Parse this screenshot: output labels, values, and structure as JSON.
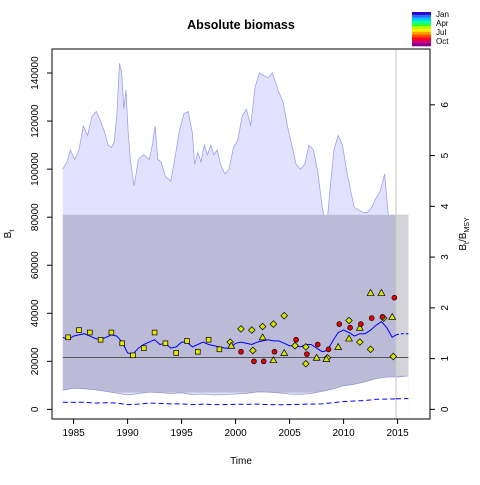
{
  "chart_data": {
    "type": "line",
    "title": "Absolute biomass",
    "xlabel": "Time",
    "ylabel": "B",
    "ylabel_sub": "t",
    "y2label": "B",
    "y2label_sub": "t",
    "y2label_sep": "/B",
    "y2label_sub2": "MSY",
    "xlim": [
      1983,
      2018
    ],
    "ylim": [
      -4000,
      150000
    ],
    "y2lim": [
      -0.19,
      7.1
    ],
    "bmsy": 21600,
    "x_ticks": [
      "1985",
      "1990",
      "1995",
      "2000",
      "2005",
      "2010",
      "2015"
    ],
    "x_tick_values": [
      1985,
      1990,
      1995,
      2000,
      2005,
      2010,
      2015
    ],
    "y_ticks": [
      "0",
      "20000",
      "40000",
      "60000",
      "80000",
      "100000",
      "120000",
      "140000"
    ],
    "y_tick_values": [
      0,
      20000,
      40000,
      60000,
      80000,
      100000,
      120000,
      140000
    ],
    "y2_ticks": [
      "0",
      "1",
      "2",
      "3",
      "4",
      "5",
      "6"
    ],
    "y2_tick_values": [
      0,
      1,
      2,
      3,
      4,
      5,
      6
    ],
    "prediction_start": 2014.85,
    "legend": {
      "labels": [
        "Jan",
        "Apr",
        "Jul",
        "Oct"
      ],
      "colors": [
        "#2a00d5",
        "#2f6bff",
        "#00c8ff",
        "#00ffb0",
        "#33ff33",
        "#b3ff00",
        "#ffee00",
        "#ffa000",
        "#ff4a00",
        "#ff0020",
        "#d4006e",
        "#8a0095"
      ]
    },
    "colors": {
      "upper_band": "#e2e2ff",
      "upper_band_line": "#a0a0ee",
      "mid_band": "#bbbbd8",
      "gray_box": "#d8d8d8",
      "estimate_line": "#0000ff",
      "bmsy_line": "#555555",
      "vline": "#c8c8c8"
    },
    "upper_band": {
      "x": [
        1984,
        1984.4,
        1984.7,
        1985.1,
        1985.5,
        1985.9,
        1986.3,
        1986.7,
        1987.1,
        1987.5,
        1987.9,
        1988.2,
        1988.5,
        1988.75,
        1989,
        1989.25,
        1989.45,
        1989.65,
        1989.85,
        1990.05,
        1990.25,
        1990.6,
        1991,
        1991.5,
        1992,
        1992.3,
        1992.55,
        1992.8,
        1993.1,
        1993.5,
        1994,
        1994.4,
        1994.8,
        1995.2,
        1995.6,
        1996,
        1996.2,
        1996.5,
        1996.8,
        1997.1,
        1997.4,
        1997.7,
        1998,
        1998.3,
        1998.6,
        1999,
        1999.4,
        1999.8,
        2000.2,
        2000.6,
        2001,
        2001.4,
        2001.8,
        2002.2,
        2002.6,
        2003,
        2003.4,
        2003.7,
        2004,
        2004.4,
        2004.8,
        2005.2,
        2005.6,
        2006,
        2006.4,
        2006.8,
        2007.2,
        2007.6,
        2008,
        2008.4,
        2008.75,
        2009.1,
        2009.5,
        2009.9,
        2010.3,
        2010.7,
        2011,
        2011.4,
        2011.8,
        2012.2,
        2012.6,
        2013,
        2013.4,
        2013.8,
        2014.2,
        2014.6,
        2014.85,
        2015.1,
        2015.5,
        2016
      ],
      "y": [
        100000,
        103000,
        108000,
        104000,
        108000,
        118000,
        114000,
        122000,
        124000,
        120000,
        115000,
        110000,
        109000,
        111000,
        122000,
        144000,
        140000,
        125000,
        133000,
        116000,
        104000,
        93000,
        104000,
        106000,
        104000,
        110000,
        118000,
        104000,
        103000,
        97000,
        95000,
        105000,
        116000,
        123000,
        124000,
        115000,
        102000,
        107000,
        103000,
        110000,
        106000,
        110000,
        106000,
        108000,
        102000,
        98000,
        100000,
        109000,
        112000,
        122000,
        125000,
        118000,
        134000,
        140000,
        139000,
        138000,
        140000,
        136000,
        132000,
        128000,
        118000,
        110000,
        102000,
        100000,
        102000,
        110000,
        108000,
        99000,
        85000,
        74000,
        92000,
        108000,
        114000,
        110000,
        99000,
        90000,
        84000,
        83000,
        82000,
        82000,
        84000,
        88000,
        91000,
        98000,
        78000,
        68000,
        70000,
        70000,
        69500,
        69000
      ]
    },
    "mid_band": {
      "x": [
        1984,
        2016
      ],
      "ymin": 7000,
      "ymax": 81000
    },
    "lower_band": {
      "x": [
        1984,
        1985,
        1986,
        1987,
        1988,
        1989,
        1990,
        1991,
        1992,
        1993,
        1994,
        1995,
        1996,
        1997,
        1998,
        1999,
        2000,
        2001,
        2002,
        2003,
        2004,
        2005,
        2006,
        2007,
        2008,
        2009,
        2010,
        2011,
        2012,
        2013,
        2014,
        2015,
        2016
      ],
      "y": [
        8000,
        8800,
        8600,
        8200,
        7500,
        6800,
        6000,
        6600,
        7200,
        7000,
        6600,
        6900,
        6200,
        6400,
        6000,
        6200,
        6400,
        6700,
        7300,
        7200,
        6900,
        6400,
        6300,
        6600,
        7500,
        8500,
        9800,
        10500,
        11500,
        12800,
        13500,
        13500,
        14000
      ]
    },
    "estimate_line": {
      "x": [
        1984,
        1984.5,
        1985,
        1985.5,
        1986,
        1986.5,
        1987,
        1987.5,
        1988,
        1988.5,
        1989,
        1989.5,
        1990,
        1990.5,
        1991,
        1991.5,
        1992,
        1992.5,
        1993,
        1993.5,
        1994,
        1994.5,
        1995,
        1995.5,
        1996,
        1996.5,
        1997,
        1997.5,
        1998,
        1998.5,
        1999,
        1999.5,
        2000,
        2000.5,
        2001,
        2001.5,
        2002,
        2002.5,
        2003,
        2003.5,
        2004,
        2004.5,
        2005,
        2005.5,
        2006,
        2006.5,
        2007,
        2007.5,
        2008,
        2008.5,
        2009,
        2009.5,
        2010,
        2010.5,
        2011,
        2011.5,
        2012,
        2012.5,
        2013,
        2013.5,
        2014,
        2014.5,
        2014.85
      ],
      "y": [
        30000,
        29000,
        30500,
        31000,
        31500,
        30500,
        29500,
        29000,
        30000,
        31000,
        30500,
        28000,
        23500,
        23000,
        25500,
        27000,
        28000,
        29000,
        27000,
        27500,
        25500,
        26000,
        28000,
        28000,
        26000,
        27000,
        28000,
        27000,
        26500,
        26000,
        25500,
        25500,
        27500,
        28000,
        27500,
        27000,
        28000,
        28500,
        29000,
        28500,
        28500,
        27500,
        26500,
        26500,
        26000,
        27000,
        27000,
        25500,
        24000,
        24500,
        28500,
        32000,
        33000,
        32000,
        30500,
        31500,
        31500,
        33000,
        35000,
        36500,
        34000,
        30000,
        31000
      ]
    },
    "estimate_pred": {
      "x": [
        2014.85,
        2015.3,
        2016
      ],
      "y": [
        31000,
        31500,
        31500
      ]
    },
    "lower_ci": {
      "x": [
        1984,
        1986,
        1987,
        1988,
        1989,
        1990,
        1991,
        1992,
        1993,
        1994,
        1995,
        1996,
        1997,
        1998,
        1999,
        2000,
        2001,
        2002,
        2003,
        2004,
        2005,
        2006,
        2007,
        2008,
        2009,
        2010,
        2011,
        2012,
        2013,
        2014,
        2014.85
      ],
      "y": [
        3000,
        3000,
        2600,
        2800,
        2600,
        2000,
        2200,
        2600,
        2500,
        2300,
        2300,
        2000,
        2200,
        2000,
        2000,
        2100,
        2100,
        2200,
        2000,
        1900,
        2000,
        2100,
        2200,
        2300,
        2800,
        3300,
        3500,
        3700,
        4200,
        4300,
        4400
      ]
    },
    "lower_ci_pred": {
      "x": [
        2014.85,
        2016
      ],
      "y": [
        4400,
        4500
      ]
    },
    "squares": [
      {
        "x": 1984.5,
        "y": 30000
      },
      {
        "x": 1985.5,
        "y": 33000
      },
      {
        "x": 1986.5,
        "y": 32000
      },
      {
        "x": 1987.5,
        "y": 29000
      },
      {
        "x": 1988.5,
        "y": 32000
      },
      {
        "x": 1989.5,
        "y": 27500
      },
      {
        "x": 1990.5,
        "y": 22500
      },
      {
        "x": 1991.5,
        "y": 25500
      },
      {
        "x": 1992.5,
        "y": 32000
      },
      {
        "x": 1993.5,
        "y": 27500
      },
      {
        "x": 1994.5,
        "y": 23500
      },
      {
        "x": 1995.5,
        "y": 28500
      },
      {
        "x": 1996.5,
        "y": 24000
      },
      {
        "x": 1997.5,
        "y": 29000
      },
      {
        "x": 1998.5,
        "y": 25000
      }
    ],
    "diamonds": [
      {
        "x": 1999.5,
        "y": 28000,
        "c": "#d4e600"
      },
      {
        "x": 2000.5,
        "y": 33500,
        "c": "#d4e600"
      },
      {
        "x": 2001.5,
        "y": 33000,
        "c": "#d4e600"
      },
      {
        "x": 2002.5,
        "y": 34500,
        "c": "#d4e600"
      },
      {
        "x": 2003.5,
        "y": 35500,
        "c": "#d4e600"
      },
      {
        "x": 2004.5,
        "y": 39000,
        "c": "#d4e600"
      },
      {
        "x": 2001.6,
        "y": 24500,
        "c": "#d4e600"
      },
      {
        "x": 2005.5,
        "y": 26500,
        "c": "#d4e600"
      },
      {
        "x": 2006.5,
        "y": 26000,
        "c": "#d4e600"
      },
      {
        "x": 2006.5,
        "y": 19000,
        "c": "#d4e600"
      },
      {
        "x": 2008.5,
        "y": 21500,
        "c": "#d4e600"
      },
      {
        "x": 2010.5,
        "y": 37000,
        "c": "#d4e600"
      },
      {
        "x": 2011.5,
        "y": 28000,
        "c": "#d4e600"
      },
      {
        "x": 2012.5,
        "y": 25000,
        "c": "#d4e600"
      },
      {
        "x": 2013.7,
        "y": 38000,
        "c": "#d4e600"
      },
      {
        "x": 2014.6,
        "y": 22000,
        "c": "#d4e600"
      }
    ],
    "triangles": [
      {
        "x": 1999.6,
        "y": 26500,
        "c": "#d4e600"
      },
      {
        "x": 2002.5,
        "y": 30000,
        "c": "#d4e600"
      },
      {
        "x": 2003.5,
        "y": 20500,
        "c": "#d4e600"
      },
      {
        "x": 2004.5,
        "y": 23500,
        "c": "#d4e600"
      },
      {
        "x": 2007.5,
        "y": 21500,
        "c": "#d4e600"
      },
      {
        "x": 2008.4,
        "y": 21000,
        "c": "#d4e600"
      },
      {
        "x": 2009.5,
        "y": 26000,
        "c": "#d4e600"
      },
      {
        "x": 2010.5,
        "y": 29500,
        "c": "#d4e600"
      },
      {
        "x": 2011.5,
        "y": 34000,
        "c": "#d4e600"
      },
      {
        "x": 2012.5,
        "y": 48500,
        "c": "#d4e600"
      },
      {
        "x": 2013.5,
        "y": 48500,
        "c": "#d4e600"
      },
      {
        "x": 2014.5,
        "y": 38500,
        "c": "#d4e600"
      }
    ],
    "circles": [
      {
        "x": 2000.5,
        "y": 24000,
        "c": "#e00000"
      },
      {
        "x": 2001.7,
        "y": 20000,
        "c": "#e00000"
      },
      {
        "x": 2002.6,
        "y": 20000,
        "c": "#e00000"
      },
      {
        "x": 2003.6,
        "y": 24000,
        "c": "#e00000"
      },
      {
        "x": 2005.6,
        "y": 29000,
        "c": "#e00000"
      },
      {
        "x": 2006.6,
        "y": 23000,
        "c": "#e00000"
      },
      {
        "x": 2007.6,
        "y": 27000,
        "c": "#e00000"
      },
      {
        "x": 2008.6,
        "y": 25000,
        "c": "#e00000"
      },
      {
        "x": 2009.6,
        "y": 35500,
        "c": "#e00000"
      },
      {
        "x": 2010.6,
        "y": 34000,
        "c": "#e00000"
      },
      {
        "x": 2011.6,
        "y": 35500,
        "c": "#e00000"
      },
      {
        "x": 2012.6,
        "y": 38000,
        "c": "#e00000"
      },
      {
        "x": 2013.6,
        "y": 38500,
        "c": "#e00000"
      },
      {
        "x": 2014.7,
        "y": 46500,
        "c": "#e00000"
      }
    ]
  }
}
